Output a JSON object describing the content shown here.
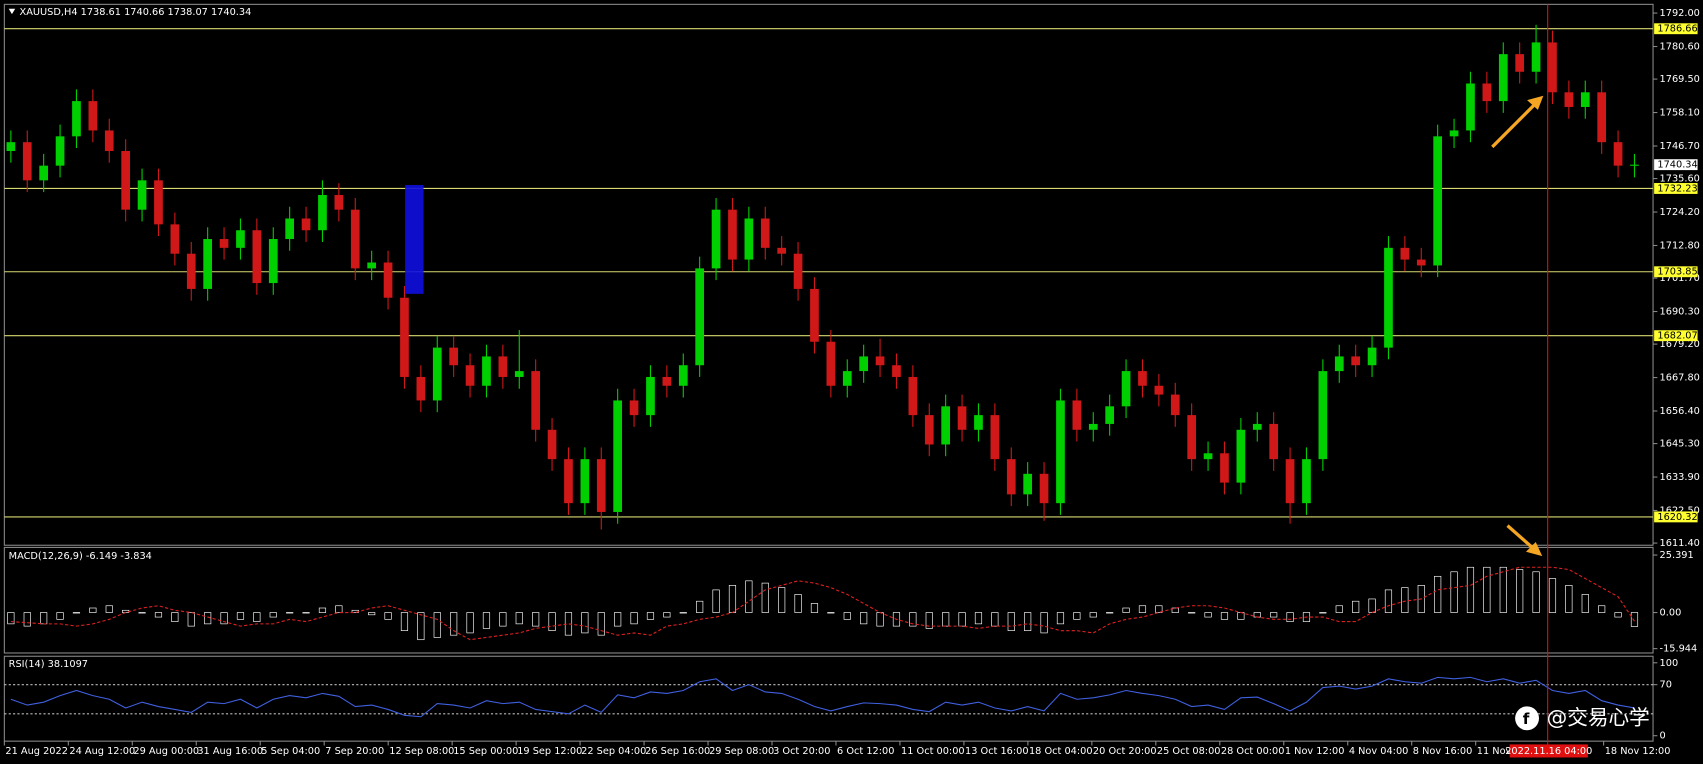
{
  "chart_data": [
    {
      "type": "candlestick",
      "title": "XAUUSD,H4  1738.61 1740.66 1738.07 1740.34",
      "open": [
        1745,
        1748,
        1735,
        1740,
        1750,
        1762,
        1752,
        1745,
        1725,
        1735,
        1720,
        1710,
        1698,
        1715,
        1712,
        1718,
        1700,
        1715,
        1722,
        1718,
        1730,
        1725,
        1705,
        1707,
        1695,
        1668,
        1660,
        1678,
        1672,
        1665,
        1675,
        1668,
        1670,
        1650,
        1640,
        1625,
        1640,
        1622,
        1660,
        1655,
        1668,
        1665,
        1672,
        1705,
        1725,
        1708,
        1722,
        1712,
        1710,
        1698,
        1680,
        1665,
        1670,
        1675,
        1672,
        1668,
        1655,
        1645,
        1658,
        1650,
        1655,
        1640,
        1628,
        1635,
        1625,
        1660,
        1650,
        1652,
        1658,
        1670,
        1665,
        1662,
        1655,
        1640,
        1642,
        1632,
        1650,
        1652,
        1640,
        1625,
        1640,
        1670,
        1675,
        1672,
        1678,
        1712,
        1708,
        1706,
        1750,
        1752,
        1768,
        1762,
        1778,
        1772,
        1782,
        1765,
        1760,
        1765,
        1748,
        1740
      ],
      "high": [
        1752,
        1752,
        1744,
        1754,
        1766,
        1766,
        1756,
        1749,
        1739,
        1739,
        1724,
        1714,
        1719,
        1719,
        1722,
        1722,
        1719,
        1726,
        1726,
        1735,
        1734,
        1729,
        1711,
        1711,
        1699,
        1672,
        1682,
        1682,
        1676,
        1679,
        1679,
        1684,
        1674,
        1654,
        1644,
        1644,
        1644,
        1664,
        1664,
        1672,
        1672,
        1676,
        1709,
        1729,
        1729,
        1726,
        1726,
        1716,
        1714,
        1702,
        1684,
        1674,
        1679,
        1681,
        1676,
        1672,
        1659,
        1662,
        1662,
        1659,
        1659,
        1644,
        1639,
        1639,
        1664,
        1664,
        1656,
        1662,
        1674,
        1674,
        1669,
        1666,
        1659,
        1646,
        1646,
        1654,
        1656,
        1656,
        1644,
        1644,
        1674,
        1679,
        1679,
        1682,
        1716,
        1716,
        1712,
        1754,
        1756,
        1772,
        1772,
        1782,
        1782,
        1788,
        1786,
        1769,
        1769,
        1769,
        1752,
        1744
      ],
      "low": [
        1741,
        1731,
        1731,
        1736,
        1746,
        1748,
        1741,
        1721,
        1721,
        1716,
        1706,
        1694,
        1694,
        1708,
        1708,
        1696,
        1696,
        1711,
        1714,
        1714,
        1721,
        1701,
        1701,
        1691,
        1664,
        1656,
        1656,
        1668,
        1661,
        1661,
        1664,
        1664,
        1646,
        1636,
        1621,
        1621,
        1616,
        1618,
        1651,
        1651,
        1661,
        1661,
        1668,
        1701,
        1704,
        1704,
        1708,
        1706,
        1694,
        1676,
        1661,
        1661,
        1666,
        1668,
        1664,
        1651,
        1641,
        1641,
        1646,
        1646,
        1636,
        1624,
        1624,
        1619,
        1621,
        1646,
        1646,
        1648,
        1654,
        1661,
        1658,
        1651,
        1636,
        1636,
        1628,
        1628,
        1646,
        1636,
        1618,
        1621,
        1636,
        1666,
        1668,
        1668,
        1674,
        1704,
        1702,
        1702,
        1746,
        1748,
        1758,
        1758,
        1768,
        1768,
        1761,
        1756,
        1756,
        1744,
        1736,
        1736
      ],
      "close": [
        1748,
        1735,
        1740,
        1750,
        1762,
        1752,
        1745,
        1725,
        1735,
        1720,
        1710,
        1698,
        1715,
        1712,
        1718,
        1700,
        1715,
        1722,
        1718,
        1730,
        1725,
        1705,
        1707,
        1695,
        1668,
        1660,
        1678,
        1672,
        1665,
        1675,
        1668,
        1670,
        1650,
        1640,
        1625,
        1640,
        1622,
        1660,
        1655,
        1668,
        1665,
        1672,
        1705,
        1725,
        1708,
        1722,
        1712,
        1710,
        1698,
        1680,
        1665,
        1670,
        1675,
        1672,
        1668,
        1655,
        1645,
        1658,
        1650,
        1655,
        1640,
        1628,
        1635,
        1625,
        1660,
        1650,
        1652,
        1658,
        1670,
        1665,
        1662,
        1655,
        1640,
        1642,
        1632,
        1650,
        1652,
        1640,
        1625,
        1640,
        1670,
        1675,
        1672,
        1678,
        1712,
        1708,
        1706,
        1750,
        1752,
        1768,
        1762,
        1778,
        1772,
        1782,
        1765,
        1760,
        1765,
        1748,
        1740,
        1740.34
      ],
      "up_color": "#00d000",
      "down_color": "#d01818",
      "level_color": "#d8d870",
      "ylim": [
        1611.4,
        1792
      ],
      "yticks": [
        {
          "value": 1792,
          "label": "1792.00"
        },
        {
          "value": 1780.6,
          "label": "1780.60"
        },
        {
          "value": 1769.5,
          "label": "1769.50"
        },
        {
          "value": 1758.1,
          "label": "1758.10"
        },
        {
          "value": 1746.7,
          "label": "1746.70"
        },
        {
          "value": 1735.6,
          "label": "1735.60"
        },
        {
          "value": 1724.2,
          "label": "1724.20"
        },
        {
          "value": 1712.8,
          "label": "1712.80"
        },
        {
          "value": 1701.7,
          "label": "1701.70"
        },
        {
          "value": 1690.3,
          "label": "1690.30"
        },
        {
          "value": 1679.2,
          "label": "1679.20"
        },
        {
          "value": 1667.8,
          "label": "1667.80"
        },
        {
          "value": 1656.4,
          "label": "1656.40"
        },
        {
          "value": 1645.3,
          "label": "1645.30"
        },
        {
          "value": 1633.9,
          "label": "1633.90"
        },
        {
          "value": 1622.5,
          "label": "1622.50"
        },
        {
          "value": 1611.4,
          "label": "1611.40"
        }
      ],
      "levels": [
        1786.66,
        1732.23,
        1703.85,
        1682.07,
        1620.32
      ],
      "last_price": 1740.34,
      "time_labels": [
        "21 Aug 2022",
        "24 Aug 12:00",
        "29 Aug 00:00",
        "31 Aug 16:00",
        "5 Sep 04:00",
        "7 Sep 20:00",
        "12 Sep 08:00",
        "15 Sep 00:00",
        "19 Sep 12:00",
        "22 Sep 04:00",
        "26 Sep 16:00",
        "29 Sep 08:00",
        "3 Oct 20:00",
        "6 Oct 12:00",
        "11 Oct 00:00",
        "13 Oct 16:00",
        "18 Oct 04:00",
        "20 Oct 20:00",
        "25 Oct 08:00",
        "28 Oct 00:00",
        "1 Nov 12:00",
        "4 Nov 04:00",
        "8 Nov 16:00",
        "11 Nov",
        "18 Nov 12:00"
      ],
      "cursor_time": "2022.11.16 04:00",
      "watermark": "@交易心学"
    },
    {
      "type": "macd",
      "title": "MACD(12,26,9) -6.149 -3.834",
      "values": [
        -5,
        -6,
        -5,
        -3,
        0,
        2,
        3,
        1,
        0,
        -2,
        -4,
        -6,
        -5,
        -5,
        -3,
        -4,
        -2,
        0,
        0,
        2,
        3,
        1,
        -1,
        -3,
        -8,
        -12,
        -11,
        -10,
        -9,
        -7,
        -6,
        -5,
        -6,
        -8,
        -10,
        -9,
        -10,
        -6,
        -5,
        -3,
        -2,
        0,
        5,
        10,
        12,
        14,
        13,
        11,
        8,
        4,
        0,
        -3,
        -5,
        -6,
        -6,
        -6,
        -7,
        -6,
        -6,
        -5,
        -6,
        -8,
        -8,
        -9,
        -5,
        -3,
        -2,
        0,
        2,
        3,
        3,
        2,
        0,
        -2,
        -3,
        -3,
        -2,
        -2,
        -4,
        -4,
        0,
        3,
        5,
        6,
        10,
        11,
        12,
        16,
        18,
        20,
        20,
        20,
        19,
        18,
        15,
        12,
        8,
        3,
        -2,
        -6.149
      ],
      "signal": [
        -4,
        -4.5,
        -5,
        -5,
        -6,
        -5,
        -3,
        0,
        2,
        3,
        1,
        0,
        -2,
        -4,
        -6,
        -5,
        -5,
        -3,
        -4,
        -2,
        0,
        0,
        2,
        3,
        1,
        -1,
        -3,
        -8,
        -12,
        -11,
        -10,
        -9,
        -7,
        -6,
        -5,
        -6,
        -8,
        -10,
        -9,
        -10,
        -6,
        -5,
        -3,
        -2,
        0,
        5,
        10,
        12,
        14,
        13,
        11,
        8,
        4,
        0,
        -3,
        -5,
        -6,
        -6,
        -6,
        -7,
        -6,
        -6,
        -5,
        -6,
        -8,
        -8,
        -9,
        -5,
        -3,
        -2,
        0,
        2,
        3,
        3,
        2,
        0,
        -2,
        -3,
        -3,
        -2,
        -2,
        -4,
        -4,
        0,
        3,
        5,
        6,
        10,
        11,
        12,
        16,
        18,
        20,
        20,
        20,
        19,
        15,
        11,
        7,
        -3.834
      ],
      "color": "#ffffff",
      "signal_color": "#e02020",
      "ylim": [
        -15.944,
        25.391
      ],
      "yticks": [
        25.391,
        {
          "value": 0,
          "label": "0.00"
        },
        -15.944
      ]
    },
    {
      "type": "rsi",
      "title": "RSI(14) 38.1097",
      "values": [
        50,
        42,
        46,
        55,
        62,
        55,
        50,
        38,
        46,
        40,
        36,
        32,
        46,
        44,
        50,
        38,
        50,
        55,
        52,
        58,
        54,
        40,
        42,
        36,
        28,
        26,
        44,
        42,
        38,
        48,
        44,
        46,
        36,
        33,
        30,
        42,
        32,
        56,
        52,
        60,
        58,
        62,
        74,
        78,
        62,
        70,
        60,
        58,
        50,
        40,
        34,
        40,
        45,
        44,
        42,
        36,
        33,
        46,
        42,
        46,
        38,
        34,
        40,
        34,
        58,
        50,
        52,
        56,
        62,
        58,
        55,
        50,
        40,
        42,
        36,
        52,
        53,
        44,
        34,
        46,
        66,
        68,
        64,
        68,
        78,
        74,
        72,
        80,
        78,
        80,
        74,
        78,
        72,
        76,
        62,
        58,
        62,
        48,
        42,
        38.1097
      ],
      "color": "#4060e0",
      "ylim": [
        0,
        100
      ],
      "yticks": [
        100,
        70,
        0
      ],
      "levels": [
        70,
        30
      ]
    }
  ]
}
